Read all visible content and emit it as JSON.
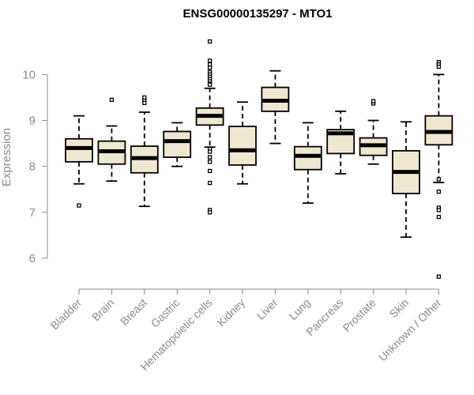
{
  "chart_data": {
    "type": "boxplot",
    "title": "ENSG00000135297 - MTO1",
    "xlabel": "",
    "ylabel": "Expression",
    "ylim": [
      5.5,
      10.9
    ],
    "yticks": [
      6,
      7,
      8,
      9,
      10
    ],
    "grid": false,
    "legend": "none",
    "box_fill": "#efe8d1",
    "box_stroke": "#000000",
    "title_color": "#000000",
    "axis_color": "#8a8a8a",
    "categories": [
      "Bladder",
      "Brain",
      "Breast",
      "Gastric",
      "Hematopoietic cells",
      "Kidney",
      "Liver",
      "Lung",
      "Pancreas",
      "Prostate",
      "Skin",
      "Unknown / Other"
    ],
    "boxes": [
      {
        "category": "Bladder",
        "whisker_low": 7.62,
        "q1": 8.1,
        "median": 8.4,
        "q3": 8.6,
        "whisker_high": 9.1,
        "outliers": [
          7.15
        ]
      },
      {
        "category": "Brain",
        "whisker_low": 7.68,
        "q1": 8.05,
        "median": 8.33,
        "q3": 8.55,
        "whisker_high": 8.88,
        "outliers": [
          9.45
        ]
      },
      {
        "category": "Breast",
        "whisker_low": 7.13,
        "q1": 7.86,
        "median": 8.18,
        "q3": 8.44,
        "whisker_high": 9.18,
        "outliers": [
          9.38,
          9.45,
          9.5
        ]
      },
      {
        "category": "Gastric",
        "whisker_low": 8.0,
        "q1": 8.2,
        "median": 8.55,
        "q3": 8.76,
        "whisker_high": 8.95,
        "outliers": []
      },
      {
        "category": "Hematopoietic cells",
        "whisker_low": 8.42,
        "q1": 8.9,
        "median": 9.1,
        "q3": 9.27,
        "whisker_high": 9.7,
        "outliers": [
          10.72,
          10.3,
          10.22,
          10.15,
          10.05,
          10.0,
          9.95,
          9.9,
          9.85,
          9.8,
          9.78,
          8.38,
          8.32,
          8.2,
          8.1,
          7.9,
          7.64,
          7.05,
          7.0
        ]
      },
      {
        "category": "Kidney",
        "whisker_low": 7.62,
        "q1": 8.03,
        "median": 8.35,
        "q3": 8.87,
        "whisker_high": 9.4,
        "outliers": []
      },
      {
        "category": "Liver",
        "whisker_low": 8.5,
        "q1": 9.2,
        "median": 9.43,
        "q3": 9.72,
        "whisker_high": 10.08,
        "outliers": []
      },
      {
        "category": "Lung",
        "whisker_low": 7.2,
        "q1": 7.93,
        "median": 8.23,
        "q3": 8.43,
        "whisker_high": 8.95,
        "outliers": []
      },
      {
        "category": "Pancreas",
        "whisker_low": 7.84,
        "q1": 8.28,
        "median": 8.72,
        "q3": 8.8,
        "whisker_high": 9.2,
        "outliers": []
      },
      {
        "category": "Prostate",
        "whisker_low": 8.05,
        "q1": 8.24,
        "median": 8.46,
        "q3": 8.62,
        "whisker_high": 9.0,
        "outliers": [
          9.37,
          9.42
        ]
      },
      {
        "category": "Skin",
        "whisker_low": 6.46,
        "q1": 7.41,
        "median": 7.88,
        "q3": 8.34,
        "whisker_high": 8.97,
        "outliers": []
      },
      {
        "category": "Unknown / Other",
        "whisker_low": 7.65,
        "q1": 8.47,
        "median": 8.75,
        "q3": 9.1,
        "whisker_high": 10.0,
        "outliers": [
          10.27,
          10.22,
          10.17,
          7.72,
          7.45,
          7.1,
          7.05,
          6.9,
          5.6
        ]
      }
    ]
  }
}
